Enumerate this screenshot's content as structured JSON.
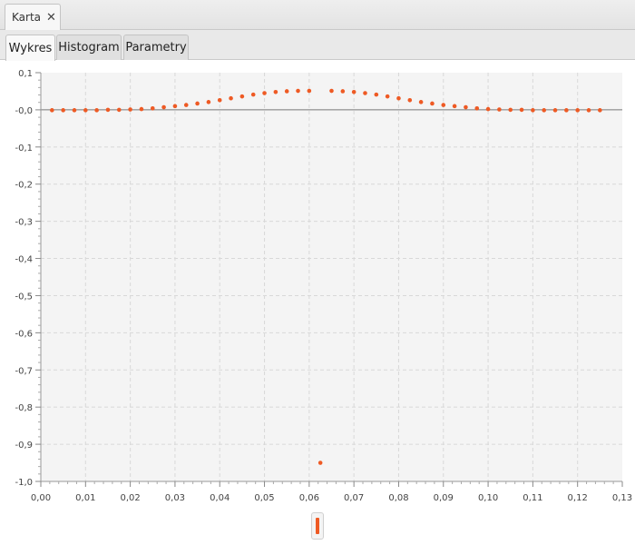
{
  "window_tab": {
    "label": "Karta",
    "close_icon": "close-icon"
  },
  "tabs": [
    {
      "label": "Wykres",
      "active": true
    },
    {
      "label": "Histogram",
      "active": false
    },
    {
      "label": "Parametry",
      "active": false
    }
  ],
  "colors": {
    "accent": "#ee5a24",
    "plot_background": "#f4f4f4",
    "grid": "#d8d8d8",
    "zero_line": "#777777"
  },
  "chart_data": {
    "type": "scatter",
    "title": "",
    "xlabel": "",
    "ylabel": "",
    "xlim": [
      0,
      0.13
    ],
    "ylim": [
      -1.0,
      0.1
    ],
    "grid": true,
    "legend": "none",
    "x_ticks": [
      "0,00",
      "0,01",
      "0,02",
      "0,03",
      "0,04",
      "0,05",
      "0,06",
      "0,07",
      "0,08",
      "0,09",
      "0,10",
      "0,11",
      "0,12",
      "0,13"
    ],
    "y_ticks": [
      "0,1",
      "-0,0",
      "-0,1",
      "-0,2",
      "-0,3",
      "-0,4",
      "-0,5",
      "-0,6",
      "-0,7",
      "-0,8",
      "-0,9",
      "-1,0"
    ],
    "series": [
      {
        "x": [
          0.0025,
          0.005,
          0.0075,
          0.01,
          0.0125,
          0.015,
          0.0175,
          0.02,
          0.0225,
          0.025,
          0.0275,
          0.03,
          0.0325,
          0.035,
          0.0375,
          0.04,
          0.0425,
          0.045,
          0.0475,
          0.05,
          0.0525,
          0.055,
          0.0575,
          0.06,
          0.0625,
          0.065,
          0.0675,
          0.07,
          0.0725,
          0.075,
          0.0775,
          0.08,
          0.0825,
          0.085,
          0.0875,
          0.09,
          0.0925,
          0.095,
          0.0975,
          0.1,
          0.1025,
          0.105,
          0.1075,
          0.11,
          0.1125,
          0.115,
          0.1175,
          0.12,
          0.1225,
          0.125
        ],
        "y": [
          -0.001,
          -0.001,
          -0.001,
          -0.001,
          -0.001,
          0.0,
          0.0,
          0.001,
          0.002,
          0.004,
          0.007,
          0.01,
          0.013,
          0.017,
          0.021,
          0.026,
          0.031,
          0.036,
          0.041,
          0.045,
          0.048,
          0.05,
          0.051,
          0.051,
          -0.95,
          0.051,
          0.05,
          0.048,
          0.045,
          0.041,
          0.036,
          0.031,
          0.026,
          0.021,
          0.017,
          0.013,
          0.01,
          0.007,
          0.004,
          0.002,
          0.001,
          0.0,
          0.0,
          -0.001,
          -0.001,
          -0.001,
          -0.001,
          -0.001,
          -0.001,
          -0.001
        ]
      }
    ],
    "slider_position": 0.5
  }
}
